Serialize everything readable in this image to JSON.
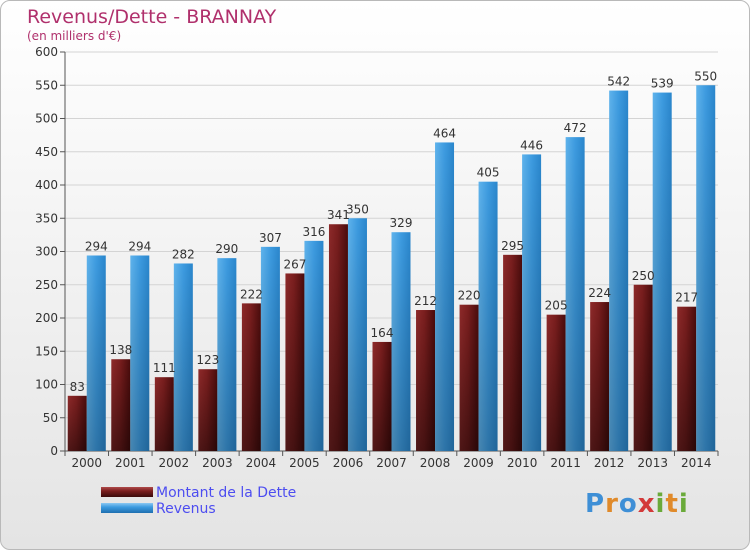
{
  "title": "Revenus/Dette - BRANNAY",
  "subtitle": "(en milliers d'€)",
  "logo": {
    "letters": [
      {
        "ch": "P",
        "color": "#3e8fd6"
      },
      {
        "ch": "r",
        "color": "#e08a2a"
      },
      {
        "ch": "o",
        "color": "#3e8fd6"
      },
      {
        "ch": "x",
        "color": "#d33a3a"
      },
      {
        "ch": "i",
        "color": "#6aaa3a"
      },
      {
        "ch": "t",
        "color": "#e08a2a"
      },
      {
        "ch": "i",
        "color": "#6aaa3a"
      }
    ]
  },
  "colors": {
    "debt": "#7a1e1e",
    "revenue": "#3d9be0",
    "title": "#b0306c",
    "legend_text": "#4d4df0"
  },
  "chart_data": {
    "type": "bar",
    "title": "Revenus/Dette - BRANNAY",
    "subtitle": "(en milliers d'€)",
    "categories": [
      "2000",
      "2001",
      "2002",
      "2003",
      "2004",
      "2005",
      "2006",
      "2007",
      "2008",
      "2009",
      "2010",
      "2011",
      "2012",
      "2013",
      "2014"
    ],
    "series": [
      {
        "name": "Montant de la Dette",
        "values": [
          83,
          138,
          111,
          123,
          222,
          267,
          341,
          164,
          212,
          220,
          295,
          205,
          224,
          250,
          217
        ]
      },
      {
        "name": "Revenus",
        "values": [
          294,
          294,
          282,
          290,
          307,
          316,
          350,
          329,
          464,
          405,
          446,
          472,
          542,
          539,
          550
        ]
      }
    ],
    "ylim": [
      0,
      600
    ],
    "yticks": [
      0,
      50,
      100,
      150,
      200,
      250,
      300,
      350,
      400,
      450,
      500,
      550,
      600
    ],
    "grid": true,
    "legend": "bottom-left"
  }
}
